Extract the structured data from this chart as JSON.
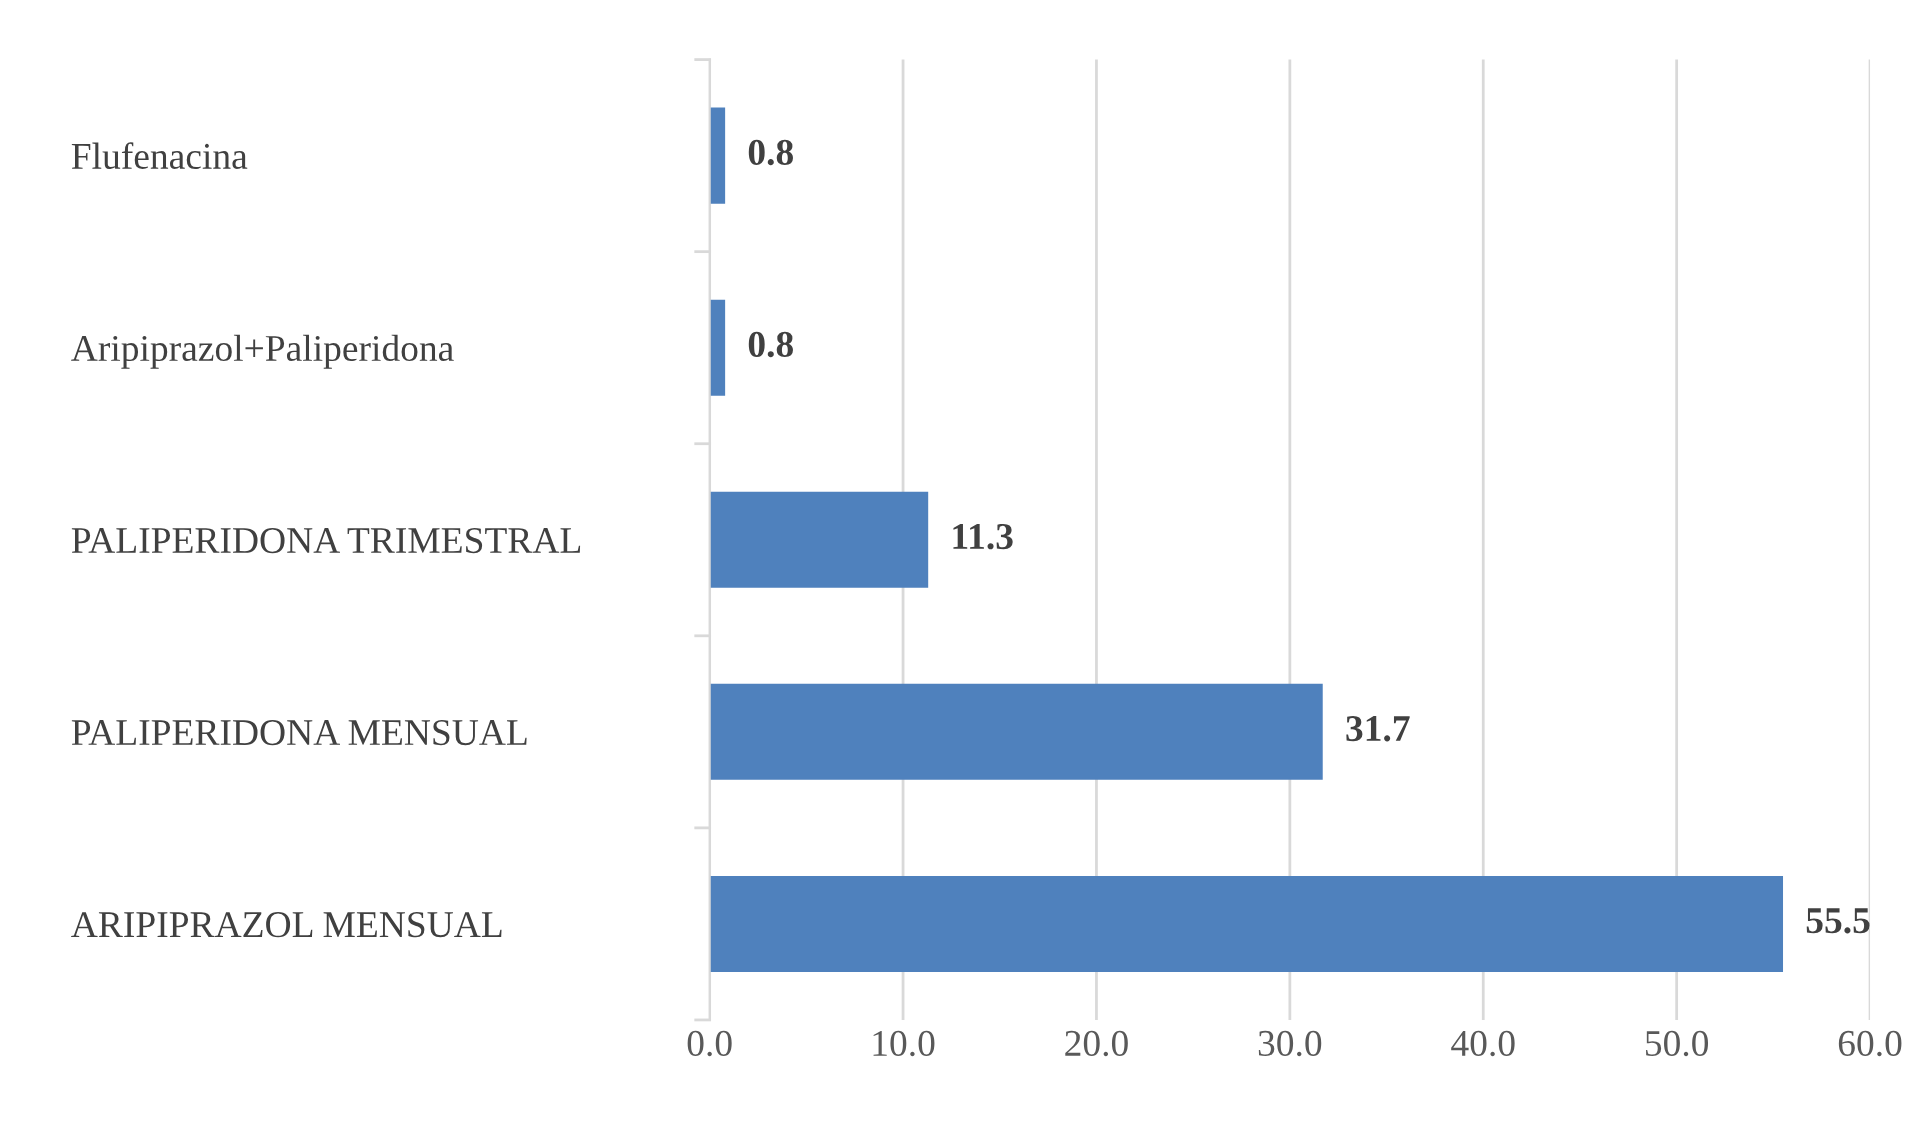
{
  "chart_data": {
    "type": "bar",
    "orientation": "horizontal",
    "categories": [
      "Flufenacina",
      "Aripiprazol+Paliperidona",
      "PALIPERIDONA TRIMESTRAL",
      "PALIPERIDONA MENSUAL",
      "ARIPIPRAZOL MENSUAL"
    ],
    "values": [
      0.8,
      0.8,
      11.3,
      31.7,
      55.5
    ],
    "color": "#4f81bd",
    "xlim": [
      0,
      60
    ],
    "xticks": [
      {
        "value": 0,
        "label": "0.0"
      },
      {
        "value": 10,
        "label": "10.0"
      },
      {
        "value": 20,
        "label": "20.0"
      },
      {
        "value": 30,
        "label": "30.0"
      },
      {
        "value": 40,
        "label": "40.0"
      },
      {
        "value": 50,
        "label": "50.0"
      },
      {
        "value": 60,
        "label": "60.0"
      }
    ],
    "grid": "x",
    "data_labels": true,
    "legend": false
  }
}
